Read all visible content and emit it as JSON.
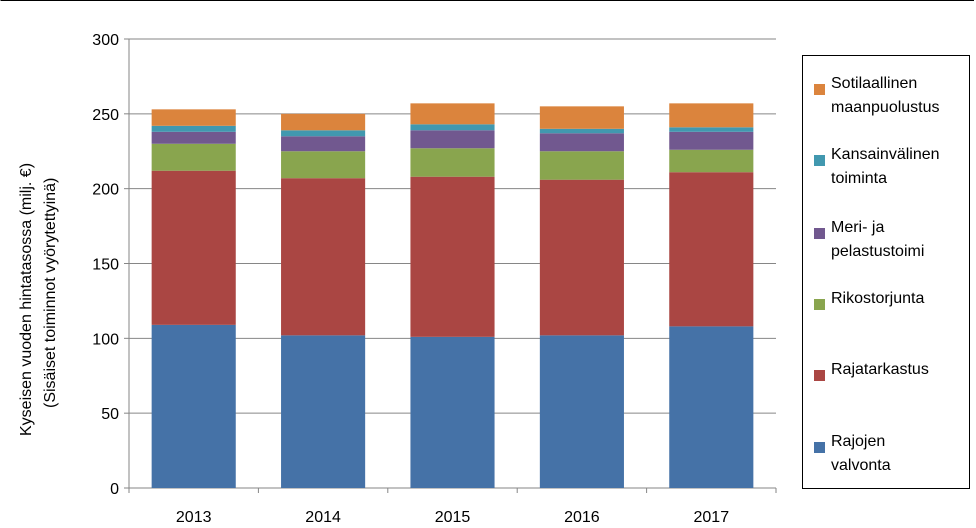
{
  "chart_data": {
    "type": "bar",
    "stacked": true,
    "categories": [
      "2013",
      "2014",
      "2015",
      "2016",
      "2017"
    ],
    "ylabel_line1": "Kyseisen vuoden hintatasossa (milj. €)",
    "ylabel_line2": "(Sisäiset toiminnot vyörytettyinä)",
    "ylim": [
      0,
      300
    ],
    "yticks": [
      "0",
      "50",
      "100",
      "150",
      "200",
      "250",
      "300"
    ],
    "grid": true,
    "legend_position": "right",
    "series": [
      {
        "name": "Rajojen valvonta",
        "color": "#4572A7",
        "values": [
          109,
          102,
          101,
          102,
          108
        ]
      },
      {
        "name": "Rajatarkastus",
        "color": "#AA4643",
        "values": [
          103,
          105,
          107,
          104,
          103
        ]
      },
      {
        "name": "Rikostorjunta",
        "color": "#89A54E",
        "values": [
          18,
          18,
          19,
          19,
          15
        ]
      },
      {
        "name": "Meri- ja pelastustoimi",
        "color": "#71588F",
        "values": [
          8,
          10,
          12,
          12,
          12
        ]
      },
      {
        "name": "Kansainvälinen toiminta",
        "color": "#4198AF",
        "values": [
          4,
          4,
          4,
          3,
          3
        ]
      },
      {
        "name": "Sotilaallinen maanpuolustus",
        "color": "#DB843D",
        "values": [
          11,
          11,
          14,
          15,
          16
        ]
      }
    ]
  },
  "legend": {
    "items": [
      {
        "line1": "Sotilaallinen",
        "line2": "maanpuolustus"
      },
      {
        "line1": "Kansainvälinen",
        "line2": "toiminta"
      },
      {
        "line1": "Meri- ja",
        "line2": "pelastustoimi"
      },
      {
        "line1": "Rikostorjunta",
        "line2": ""
      },
      {
        "line1": "Rajatarkastus",
        "line2": ""
      },
      {
        "line1": "Rajojen",
        "line2": "valvonta"
      }
    ]
  }
}
